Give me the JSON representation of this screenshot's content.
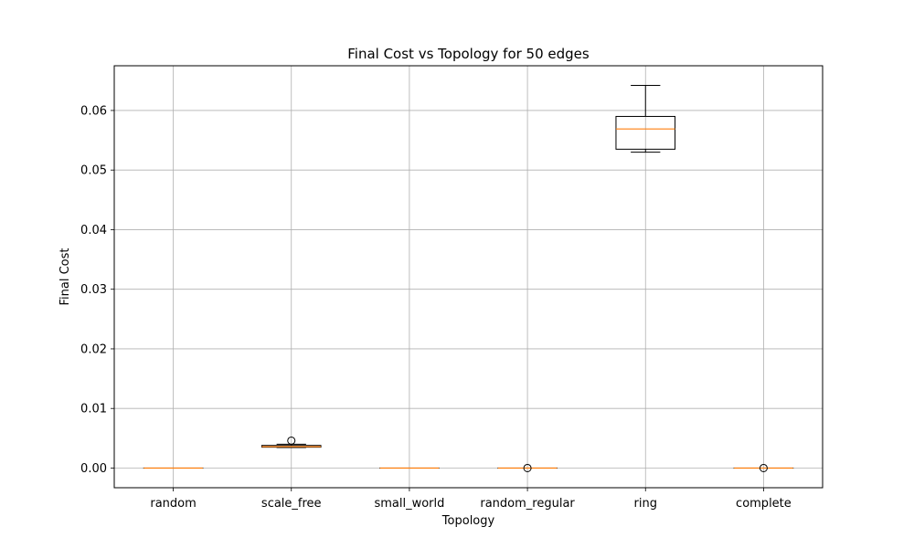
{
  "chart_data": {
    "type": "box",
    "title": "Final Cost vs Topology for 50 edges",
    "xlabel": "Topology",
    "ylabel": "Final Cost",
    "ylim": [
      -0.0033,
      0.0675
    ],
    "yticks": [
      0.0,
      0.01,
      0.02,
      0.03,
      0.04,
      0.05,
      0.06
    ],
    "ytick_labels": [
      "0.00",
      "0.01",
      "0.02",
      "0.03",
      "0.04",
      "0.05",
      "0.06"
    ],
    "grid": true,
    "categories": [
      "random",
      "scale_free",
      "small_world",
      "random_regular",
      "ring",
      "complete"
    ],
    "boxes": [
      {
        "category": "random",
        "whisker_low": 0.0,
        "q1": 0.0,
        "median": 0.0,
        "q3": 0.0,
        "whisker_high": 0.0,
        "outliers": []
      },
      {
        "category": "scale_free",
        "whisker_low": 0.00345,
        "q1": 0.0035,
        "median": 0.0036,
        "q3": 0.0038,
        "whisker_high": 0.004,
        "outliers": [
          0.0046
        ]
      },
      {
        "category": "small_world",
        "whisker_low": 0.0,
        "q1": 0.0,
        "median": 0.0,
        "q3": 0.0,
        "whisker_high": 0.0,
        "outliers": []
      },
      {
        "category": "random_regular",
        "whisker_low": 0.0,
        "q1": 0.0,
        "median": 0.0,
        "q3": 0.0,
        "whisker_high": 0.0,
        "outliers": [
          0.0
        ]
      },
      {
        "category": "ring",
        "whisker_low": 0.053,
        "q1": 0.0535,
        "median": 0.0569,
        "q3": 0.059,
        "whisker_high": 0.0642,
        "outliers": []
      },
      {
        "category": "complete",
        "whisker_low": 0.0,
        "q1": 0.0,
        "median": 0.0,
        "q3": 0.0,
        "whisker_high": 0.0,
        "outliers": [
          0.0
        ]
      }
    ],
    "colors": {
      "box": "#000000",
      "median": "#ff7f0e",
      "grid": "#b0b0b0",
      "axes": "#000000"
    }
  }
}
